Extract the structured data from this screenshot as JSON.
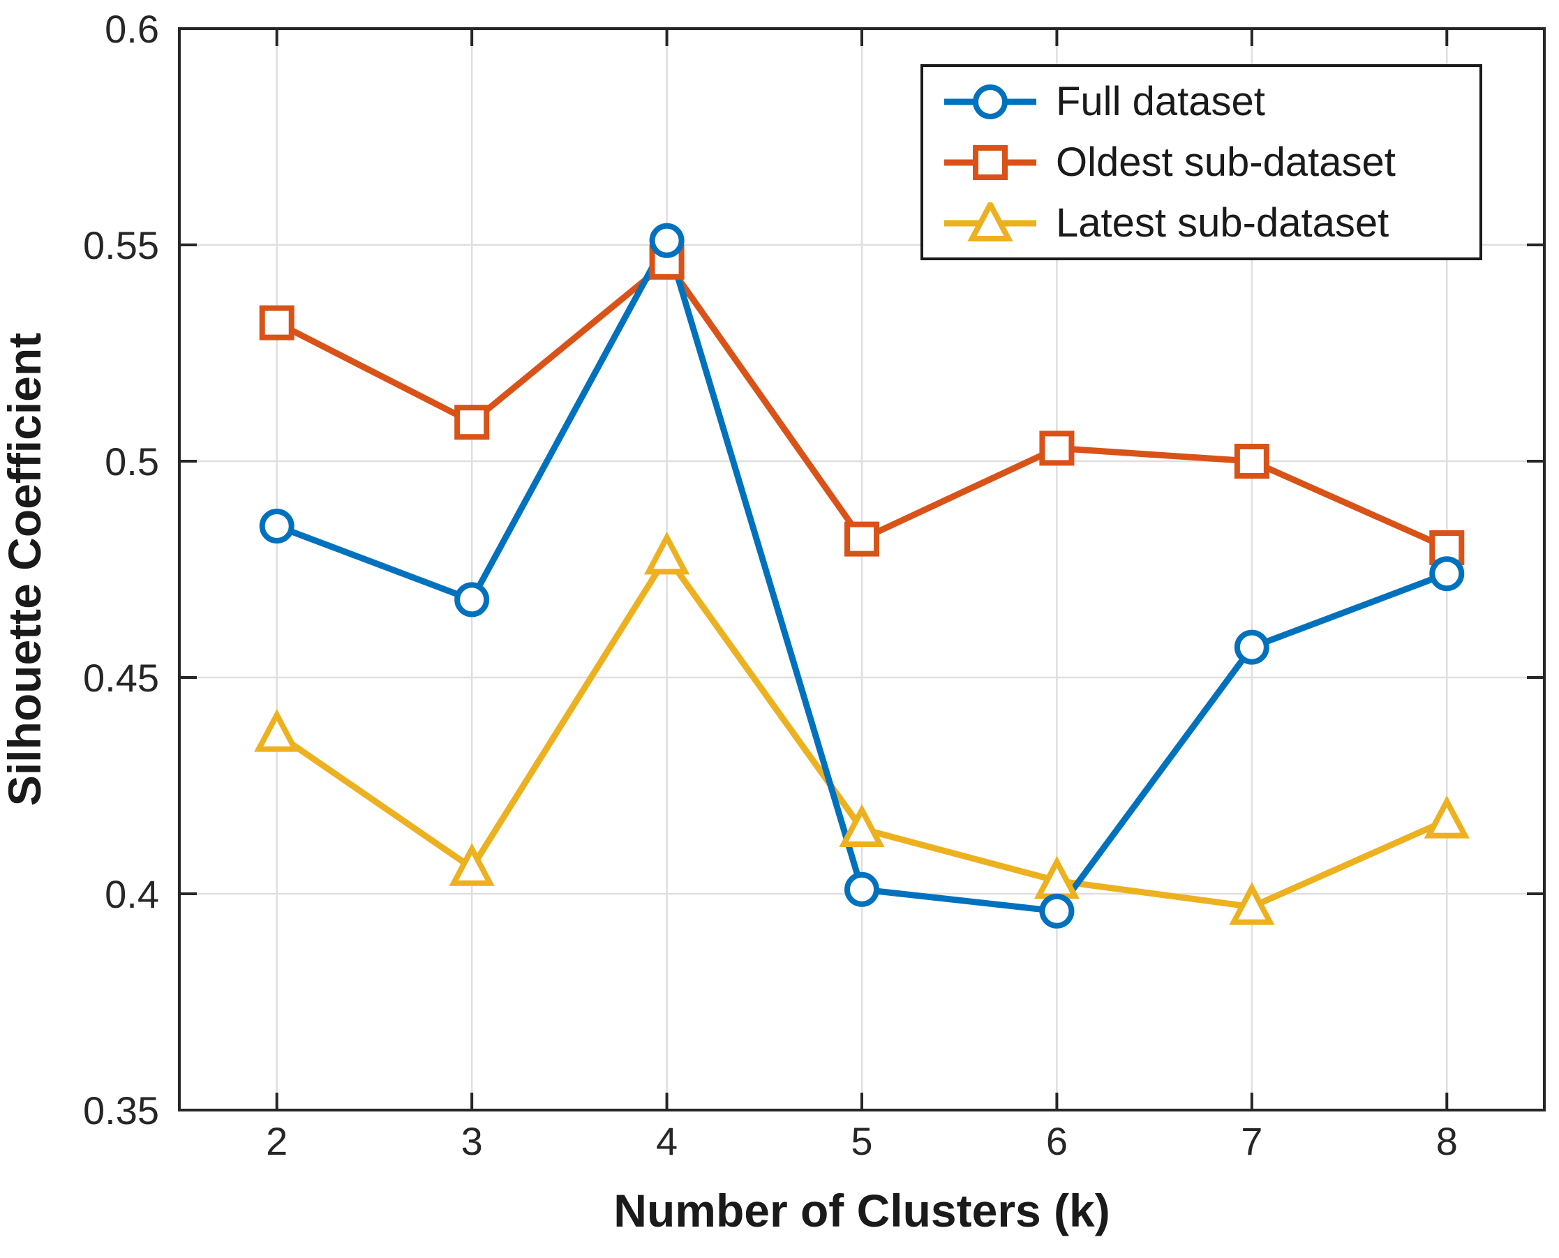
{
  "chart_data": {
    "type": "line",
    "title": "",
    "xlabel": "Number of Clusters (k)",
    "ylabel": "Silhouette Coefficient",
    "x": [
      2,
      3,
      4,
      5,
      6,
      7,
      8
    ],
    "xtick_labels": [
      "2",
      "3",
      "4",
      "5",
      "6",
      "7",
      "8"
    ],
    "yticks": [
      0.35,
      0.4,
      0.45,
      0.5,
      0.55,
      0.6
    ],
    "ytick_labels": [
      "0.35",
      "0.4",
      "0.45",
      "0.5",
      "0.55",
      "0.6"
    ],
    "xlim": [
      1.5,
      8.5
    ],
    "ylim": [
      0.35,
      0.6
    ],
    "grid": true,
    "legend_position": "top-right",
    "series": [
      {
        "name": "Full dataset",
        "marker": "circle",
        "color": "#0072BD",
        "values": [
          0.485,
          0.468,
          0.551,
          0.401,
          0.396,
          0.457,
          0.474
        ]
      },
      {
        "name": "Oldest sub-dataset",
        "marker": "square",
        "color": "#D95319",
        "values": [
          0.532,
          0.509,
          0.546,
          0.482,
          0.503,
          0.5,
          0.48
        ]
      },
      {
        "name": "Latest sub-dataset",
        "marker": "triangle",
        "color": "#EDB120",
        "values": [
          0.437,
          0.406,
          0.478,
          0.415,
          0.403,
          0.397,
          0.417
        ]
      }
    ]
  },
  "colors": {
    "axis_frame": "#262626",
    "grid": "#DFDFDF",
    "tick_text": "#262626",
    "label_text": "#1a1a1a",
    "background": "#ffffff"
  }
}
